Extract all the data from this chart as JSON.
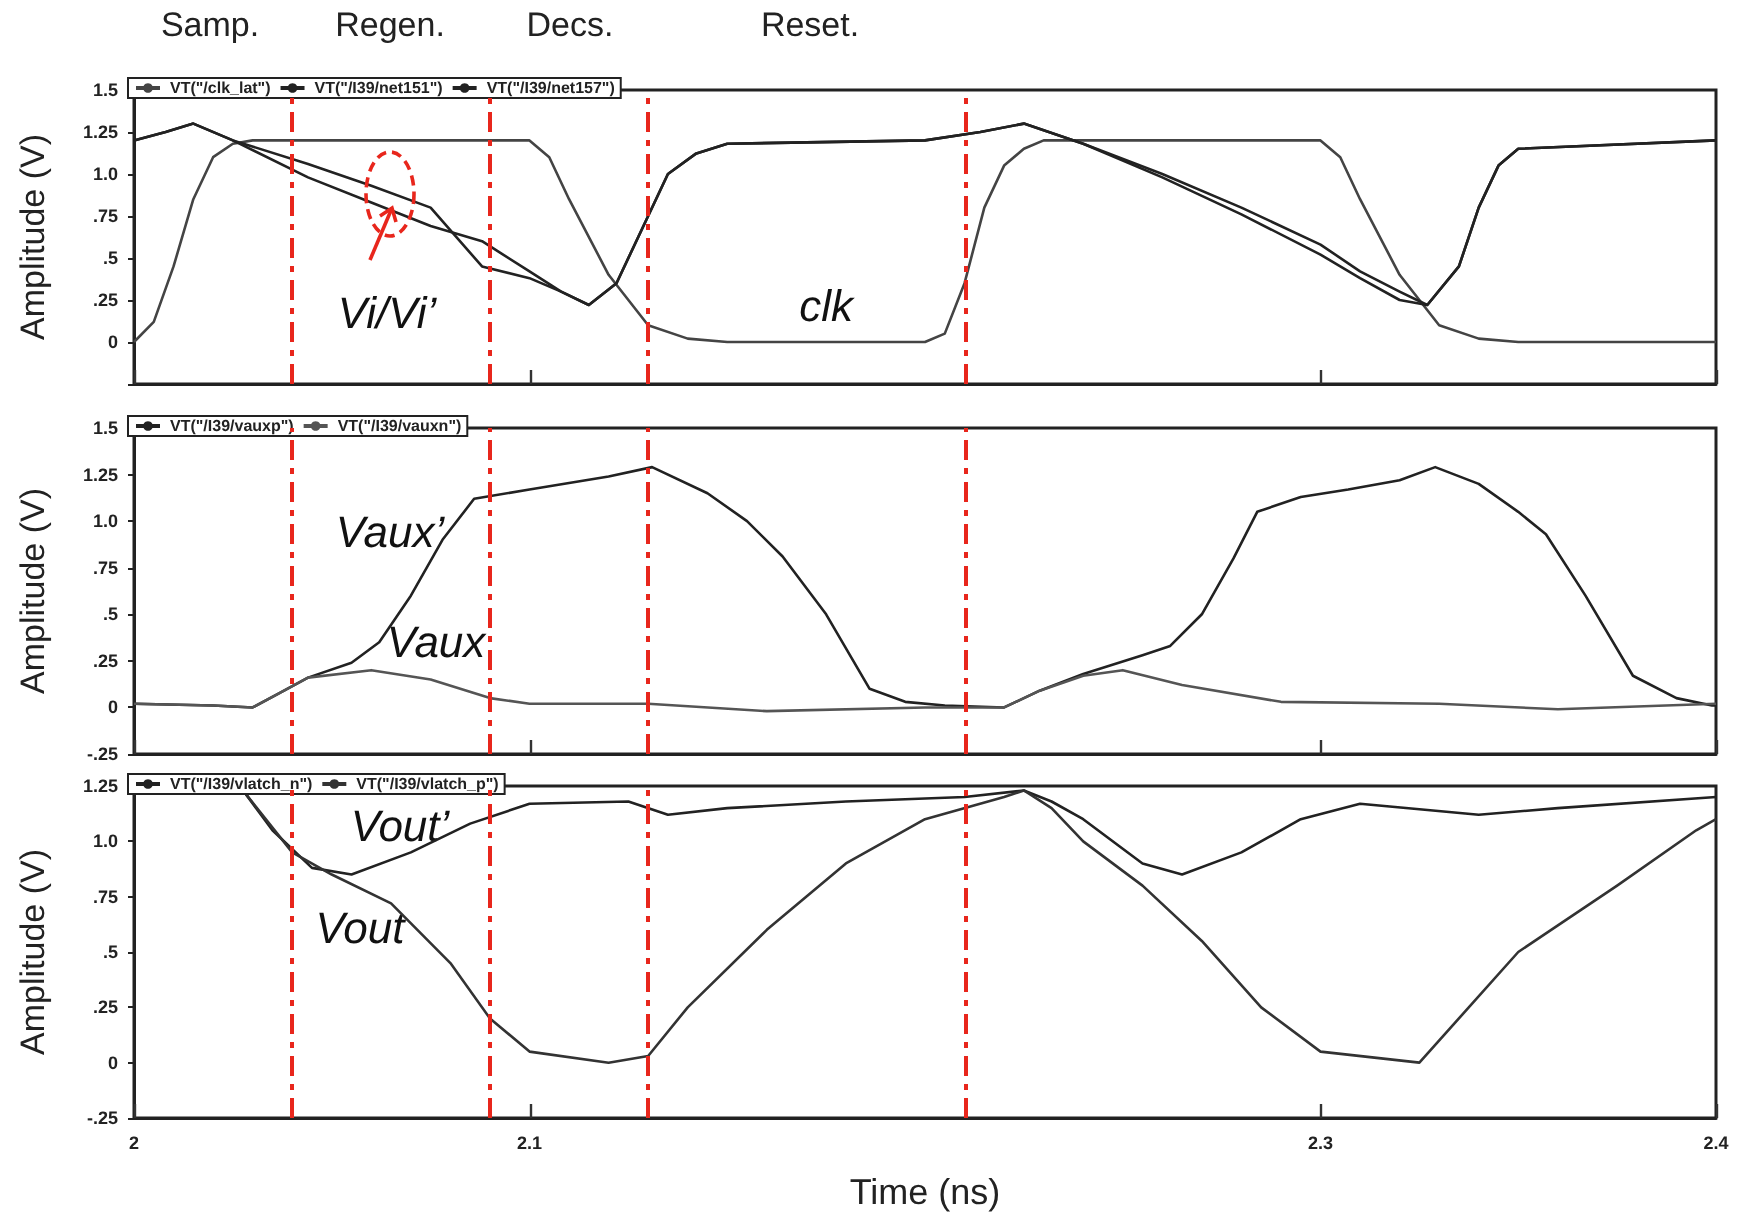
{
  "chart_data": [
    {
      "type": "line",
      "ylabel": "Amplitude (V)",
      "xlim": [
        2.0,
        2.4
      ],
      "xticks": [
        2.0,
        2.1,
        2.3,
        2.4
      ],
      "ylim": [
        -0.25,
        1.5
      ],
      "yticks": [
        {
          "value": -0.25,
          "label": null
        },
        0,
        {
          "value": 0.25,
          "label": ".25"
        },
        {
          "value": 0.5,
          "label": ".5"
        },
        {
          "value": 0.75,
          "label": ".75"
        },
        {
          "value": 1.0,
          "label": "1.0"
        },
        1.25,
        1.5
      ],
      "tick_labels": "y",
      "legend": "top left",
      "marker": "none",
      "grid": false,
      "series": [
        {
          "name": "VT(\"/clk_lat\")",
          "color": "#444444",
          "x": [
            2.0,
            2.005,
            2.01,
            2.015,
            2.02,
            2.025,
            2.03,
            2.06,
            2.1,
            2.105,
            2.11,
            2.12,
            2.13,
            2.14,
            2.15,
            2.2,
            2.205,
            2.21,
            2.215,
            2.22,
            2.225,
            2.23,
            2.26,
            2.3,
            2.305,
            2.31,
            2.32,
            2.33,
            2.34,
            2.35,
            2.4
          ],
          "values": [
            0,
            0.12,
            0.45,
            0.85,
            1.1,
            1.18,
            1.2,
            1.2,
            1.2,
            1.1,
            0.85,
            0.4,
            0.1,
            0.02,
            0,
            0,
            0.05,
            0.35,
            0.8,
            1.05,
            1.15,
            1.2,
            1.2,
            1.2,
            1.1,
            0.85,
            0.4,
            0.1,
            0.02,
            0,
            0
          ]
        },
        {
          "name": "VT(\"/I39/net151\")",
          "color": "#222222",
          "x": [
            2.0,
            2.008,
            2.015,
            2.025,
            2.044,
            2.06,
            2.075,
            2.088,
            2.1,
            2.108,
            2.115,
            2.122,
            2.13,
            2.135,
            2.142,
            2.15,
            2.2,
            2.214,
            2.225,
            2.24,
            2.26,
            2.28,
            2.3,
            2.31,
            2.32,
            2.327,
            2.335,
            2.34,
            2.345,
            2.35,
            2.4
          ],
          "values": [
            1.2,
            1.25,
            1.3,
            1.2,
            0.98,
            0.83,
            0.69,
            0.6,
            0.42,
            0.3,
            0.22,
            0.35,
            0.75,
            1.0,
            1.12,
            1.18,
            1.2,
            1.25,
            1.3,
            1.18,
            0.98,
            0.76,
            0.52,
            0.38,
            0.25,
            0.22,
            0.45,
            0.8,
            1.05,
            1.15,
            1.2
          ]
        },
        {
          "name": "VT(\"/I39/net157\")",
          "color": "#222222",
          "x": [
            2.0,
            2.008,
            2.015,
            2.025,
            2.044,
            2.06,
            2.075,
            2.088,
            2.1,
            2.108,
            2.115,
            2.122,
            2.13,
            2.135,
            2.142,
            2.15,
            2.2,
            2.214,
            2.225,
            2.24,
            2.26,
            2.28,
            2.3,
            2.31,
            2.32,
            2.327,
            2.335,
            2.34,
            2.345,
            2.35,
            2.4
          ],
          "values": [
            1.2,
            1.25,
            1.3,
            1.2,
            1.06,
            0.93,
            0.8,
            0.45,
            0.38,
            0.3,
            0.22,
            0.35,
            0.75,
            1.0,
            1.12,
            1.18,
            1.2,
            1.25,
            1.3,
            1.18,
            1.0,
            0.8,
            0.58,
            0.42,
            0.3,
            0.22,
            0.45,
            0.8,
            1.05,
            1.15,
            1.2
          ]
        }
      ],
      "ref_lines": [
        {
          "axis": "x",
          "value": 2.04,
          "color": "#e8261c",
          "line_style": "dashed"
        },
        {
          "axis": "x",
          "value": 2.09,
          "color": "#e8261c",
          "line_style": "dashed"
        },
        {
          "axis": "x",
          "value": 2.13,
          "color": "#e8261c",
          "line_style": "dashed"
        },
        {
          "axis": "x",
          "value": 2.21,
          "color": "#e8261c",
          "line_style": "dashed"
        }
      ],
      "annotations": [
        "Samp.",
        "Regen.",
        "Decs.",
        "Reset.",
        {
          "text": "Vi/Vi’",
          "x": 2.066,
          "y": 0.83
        },
        "clk"
      ]
    },
    {
      "type": "line",
      "ylabel": "Amplitude (V)",
      "xlim": [
        2.0,
        2.4
      ],
      "xticks": [
        2.0,
        2.1,
        2.3,
        2.4
      ],
      "ylim": [
        -0.25,
        1.5
      ],
      "yticks": [
        {
          "value": -0.25,
          "label": "-.25"
        },
        0,
        {
          "value": 0.25,
          "label": ".25"
        },
        {
          "value": 0.5,
          "label": ".5"
        },
        {
          "value": 0.75,
          "label": ".75"
        },
        {
          "value": 1.0,
          "label": "1.0"
        },
        1.25,
        1.5
      ],
      "tick_labels": "y",
      "legend": "top left",
      "marker": "none",
      "grid": false,
      "series": [
        {
          "name": "VT(\"/I39/vauxp\")",
          "color": "#222222",
          "x": [
            2.0,
            2.02,
            2.03,
            2.037,
            2.044,
            2.055,
            2.062,
            2.07,
            2.078,
            2.086,
            2.1,
            2.12,
            2.131,
            2.145,
            2.155,
            2.164,
            2.175,
            2.186,
            2.195,
            2.205,
            2.22,
            2.229,
            2.24,
            2.255,
            2.262,
            2.27,
            2.278,
            2.284,
            2.295,
            2.307,
            2.32,
            2.329,
            2.34,
            2.35,
            2.357,
            2.367,
            2.379,
            2.39,
            2.399,
            2.4
          ],
          "values": [
            0.02,
            0.01,
            0.0,
            0.08,
            0.16,
            0.24,
            0.35,
            0.6,
            0.9,
            1.12,
            1.17,
            1.24,
            1.29,
            1.15,
            1.0,
            0.81,
            0.5,
            0.1,
            0.03,
            0.01,
            0.0,
            0.09,
            0.18,
            0.28,
            0.33,
            0.5,
            0.8,
            1.05,
            1.13,
            1.17,
            1.22,
            1.29,
            1.2,
            1.05,
            0.93,
            0.6,
            0.17,
            0.05,
            0.01,
            0.01
          ]
        },
        {
          "name": "VT(\"/I39/vauxn\")",
          "color": "#555555",
          "x": [
            2.0,
            2.02,
            2.03,
            2.037,
            2.044,
            2.06,
            2.075,
            2.09,
            2.1,
            2.13,
            2.16,
            2.2,
            2.22,
            2.229,
            2.24,
            2.25,
            2.265,
            2.29,
            2.33,
            2.36,
            2.4
          ],
          "values": [
            0.02,
            0.01,
            0.0,
            0.08,
            0.16,
            0.2,
            0.15,
            0.05,
            0.02,
            0.02,
            -0.02,
            0.0,
            0.0,
            0.09,
            0.17,
            0.2,
            0.12,
            0.03,
            0.02,
            -0.01,
            0.02
          ]
        }
      ],
      "ref_lines": [
        {
          "axis": "x",
          "value": 2.04,
          "color": "#e8261c",
          "line_style": "dashed"
        },
        {
          "axis": "x",
          "value": 2.09,
          "color": "#e8261c",
          "line_style": "dashed"
        },
        {
          "axis": "x",
          "value": 2.13,
          "color": "#e8261c",
          "line_style": "dashed"
        },
        {
          "axis": "x",
          "value": 2.21,
          "color": "#e8261c",
          "line_style": "dashed"
        }
      ],
      "annotations": [
        "Vaux’",
        "Vaux"
      ]
    },
    {
      "type": "line",
      "ylabel": "Amplitude (V)",
      "xlabel": "Time (ns)",
      "xlim": [
        2.0,
        2.4
      ],
      "xticks": [
        2.0,
        2.1,
        2.3,
        2.4
      ],
      "ylim": [
        -0.25,
        1.25
      ],
      "yticks": [
        {
          "value": -0.25,
          "label": "-.25"
        },
        0,
        {
          "value": 0.25,
          "label": ".25"
        },
        {
          "value": 0.5,
          "label": ".5"
        },
        {
          "value": 0.75,
          "label": ".75"
        },
        {
          "value": 1.0,
          "label": "1.0"
        },
        1.25
      ],
      "legend": "top left",
      "marker": "none",
      "grid": false,
      "series": [
        {
          "name": "VT(\"/I39/vlatch_n\")",
          "color": "#222222",
          "x": [
            2.028,
            2.035,
            2.045,
            2.055,
            2.07,
            2.085,
            2.1,
            2.125,
            2.135,
            2.15,
            2.18,
            2.21,
            2.225,
            2.232,
            2.24,
            2.255,
            2.265,
            2.28,
            2.295,
            2.31,
            2.34,
            2.36,
            2.4
          ],
          "values": [
            1.22,
            1.05,
            0.88,
            0.85,
            0.95,
            1.08,
            1.17,
            1.18,
            1.12,
            1.15,
            1.18,
            1.2,
            1.23,
            1.18,
            1.1,
            0.9,
            0.85,
            0.95,
            1.1,
            1.17,
            1.12,
            1.15,
            1.2
          ]
        },
        {
          "name": "VT(\"/I39/vlatch_p\")",
          "color": "#333333",
          "x": [
            2.028,
            2.04,
            2.05,
            2.065,
            2.08,
            2.09,
            2.1,
            2.12,
            2.13,
            2.14,
            2.16,
            2.18,
            2.2,
            2.22,
            2.225,
            2.232,
            2.24,
            2.255,
            2.27,
            2.285,
            2.3,
            2.325,
            2.335,
            2.35,
            2.375,
            2.395,
            2.4
          ],
          "values": [
            1.22,
            0.95,
            0.85,
            0.72,
            0.45,
            0.2,
            0.05,
            0.0,
            0.03,
            0.25,
            0.6,
            0.9,
            1.1,
            1.2,
            1.23,
            1.15,
            1.0,
            0.8,
            0.55,
            0.25,
            0.05,
            0.0,
            0.2,
            0.5,
            0.8,
            1.05,
            1.1
          ]
        }
      ],
      "ref_lines": [
        {
          "axis": "x",
          "value": 2.04,
          "color": "#e8261c",
          "line_style": "dashed"
        },
        {
          "axis": "x",
          "value": 2.09,
          "color": "#e8261c",
          "line_style": "dashed"
        },
        {
          "axis": "x",
          "value": 2.13,
          "color": "#e8261c",
          "line_style": "dashed"
        },
        {
          "axis": "x",
          "value": 2.21,
          "color": "#e8261c",
          "line_style": "dashed"
        }
      ],
      "annotations": [
        "Vout’",
        "Vout"
      ]
    }
  ]
}
